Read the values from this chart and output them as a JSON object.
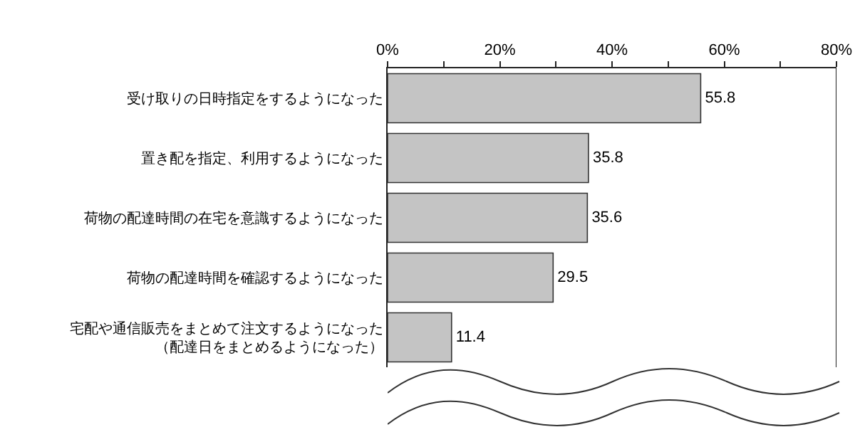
{
  "chart_data": {
    "type": "bar",
    "orientation": "horizontal",
    "categories": [
      "受け取りの日時指定をするようになった",
      "置き配を指定、利用するようになった",
      "荷物の配達時間の在宅を意識するようになった",
      "荷物の配達時間を確認するようになった",
      "宅配や通信販売をまとめて注文するようになった（配達日をまとめるようになった）"
    ],
    "values": [
      55.8,
      35.8,
      35.6,
      29.5,
      11.4
    ],
    "color": "#c4c4c4",
    "xlim": [
      0,
      80
    ],
    "xticks": [
      {
        "value": 0,
        "label": "0%"
      },
      {
        "value": 10,
        "label": null
      },
      {
        "value": 20,
        "label": "20%"
      },
      {
        "value": 30,
        "label": null
      },
      {
        "value": 40,
        "label": "40%"
      },
      {
        "value": 50,
        "label": null
      },
      {
        "value": 60,
        "label": "60%"
      },
      {
        "value": 70,
        "label": null
      },
      {
        "value": 80,
        "label": "80%"
      }
    ],
    "data_labels": true,
    "grid": false,
    "legend": false
  }
}
